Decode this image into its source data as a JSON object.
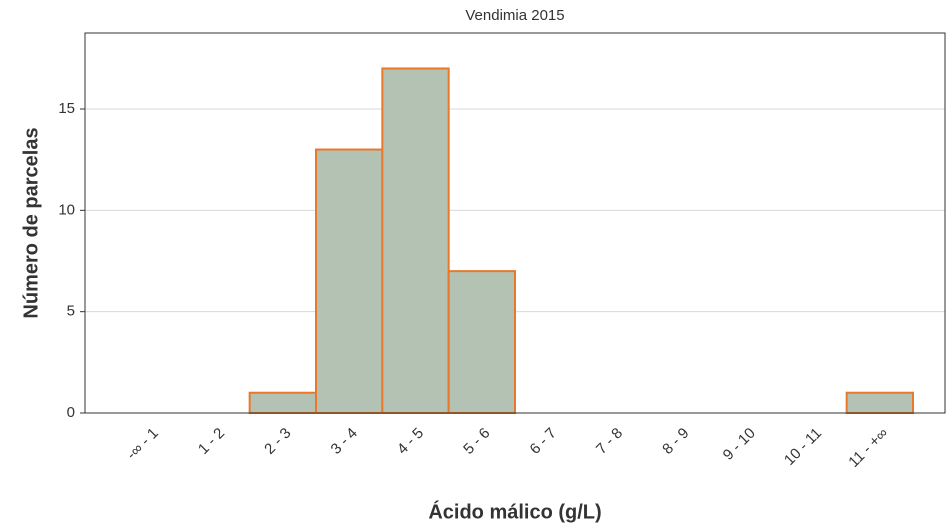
{
  "chart_data": {
    "type": "bar",
    "title": "Vendimia 2015",
    "xlabel": "Ácido málico (g/L)",
    "ylabel": "Número de parcelas",
    "categories": [
      "-∞ - 1",
      "1 - 2",
      "2 - 3",
      "3 - 4",
      "4 - 5",
      "5 - 6",
      "6 - 7",
      "7 - 8",
      "8 - 9",
      "9 - 10",
      "10 - 11",
      "11 - +∞"
    ],
    "values": [
      0,
      0,
      1,
      13,
      17,
      7,
      0,
      0,
      0,
      0,
      0,
      1
    ],
    "color": "#b3c2b3",
    "edgecolor": "#e8782a",
    "ylim": [
      0,
      18.75
    ],
    "yticks": [
      0,
      5,
      10,
      15
    ],
    "grid": true
  }
}
